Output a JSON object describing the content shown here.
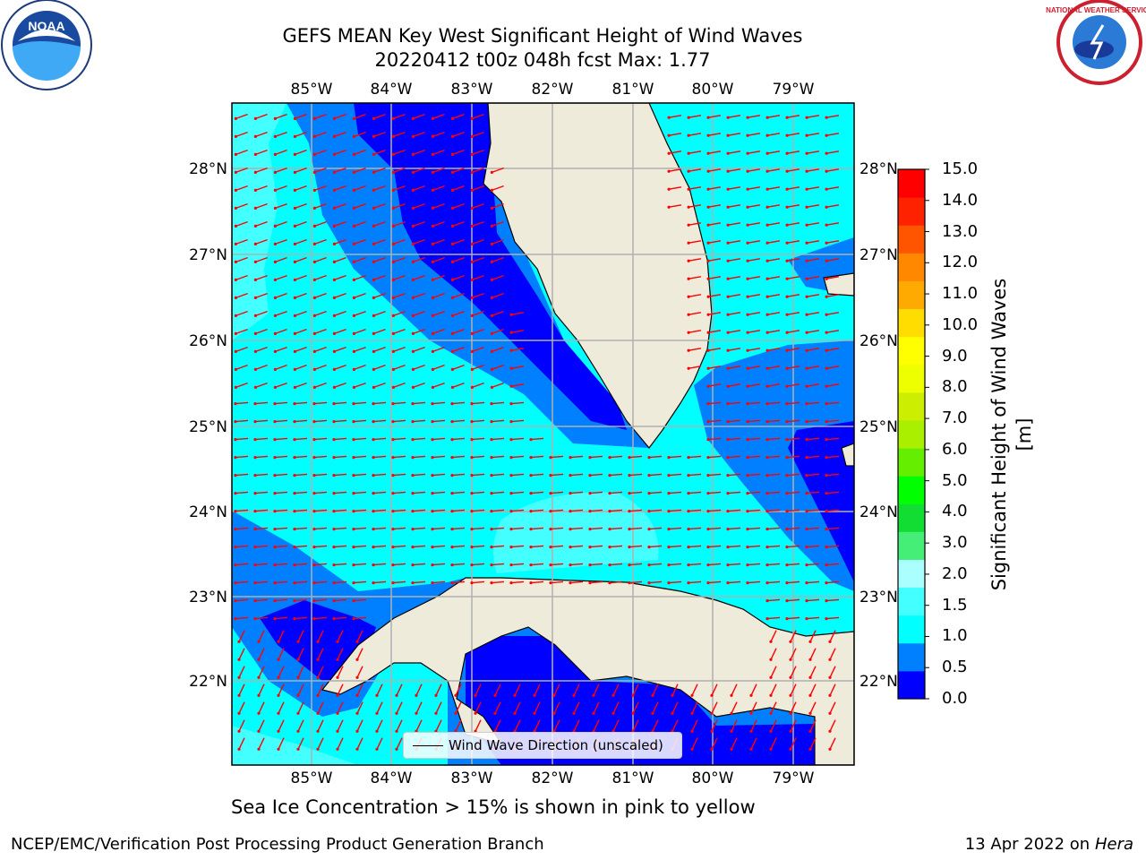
{
  "header": {
    "title_line1": "GEFS MEAN Key West Significant Height of Wind Waves",
    "title_line2": "20220412 t00z 048h fcst   Max: 1.77"
  },
  "logos": {
    "left": {
      "name": "NOAA",
      "text": "NOAA"
    },
    "right": {
      "name": "National Weather Service",
      "text": "NATIONAL WEATHER SERVICE"
    }
  },
  "map": {
    "lon_labels": [
      "85°W",
      "84°W",
      "83°W",
      "82°W",
      "81°W",
      "80°W",
      "79°W"
    ],
    "lat_labels": [
      "28°N",
      "27°N",
      "26°N",
      "25°N",
      "24°N",
      "23°N",
      "22°N"
    ],
    "colors": {
      "land": "#eeebdb",
      "ocean_0_05": "#0000ff",
      "ocean_05_1": "#0080ff",
      "ocean_1_15": "#00ffff",
      "ocean_15_2": "#44ffff",
      "ocean_2_3": "#aaffff",
      "arrow": "#ff0000",
      "grid": "#b0b0b0"
    }
  },
  "legend": {
    "label": "Wind Wave Direction (unscaled)"
  },
  "colorbar": {
    "title": "Significant Height of Wind Waves [m]",
    "ticks": [
      "15.0",
      "14.0",
      "13.0",
      "12.0",
      "11.0",
      "10.0",
      "9.0",
      "8.0",
      "7.0",
      "6.0",
      "5.0",
      "4.0",
      "3.0",
      "2.0",
      "1.5",
      "1.0",
      "0.5",
      "0.0"
    ],
    "colors": [
      "#0000ff",
      "#0080ff",
      "#00ffff",
      "#44ffff",
      "#aaffff",
      "#44ee77",
      "#11dd33",
      "#00ff00",
      "#66ee00",
      "#aaee00",
      "#ccee00",
      "#eeff00",
      "#ffff00",
      "#ffdd00",
      "#ffaa00",
      "#ff8800",
      "#ff5500",
      "#ff2200",
      "#ff0000"
    ]
  },
  "subtitle": "Sea Ice Concentration > 15% is shown in pink to yellow",
  "footer": {
    "left": "NCEP/EMC/Verification Post Processing Product Generation Branch",
    "right_date": "13 Apr 2022 on",
    "right_host": "Hera"
  }
}
